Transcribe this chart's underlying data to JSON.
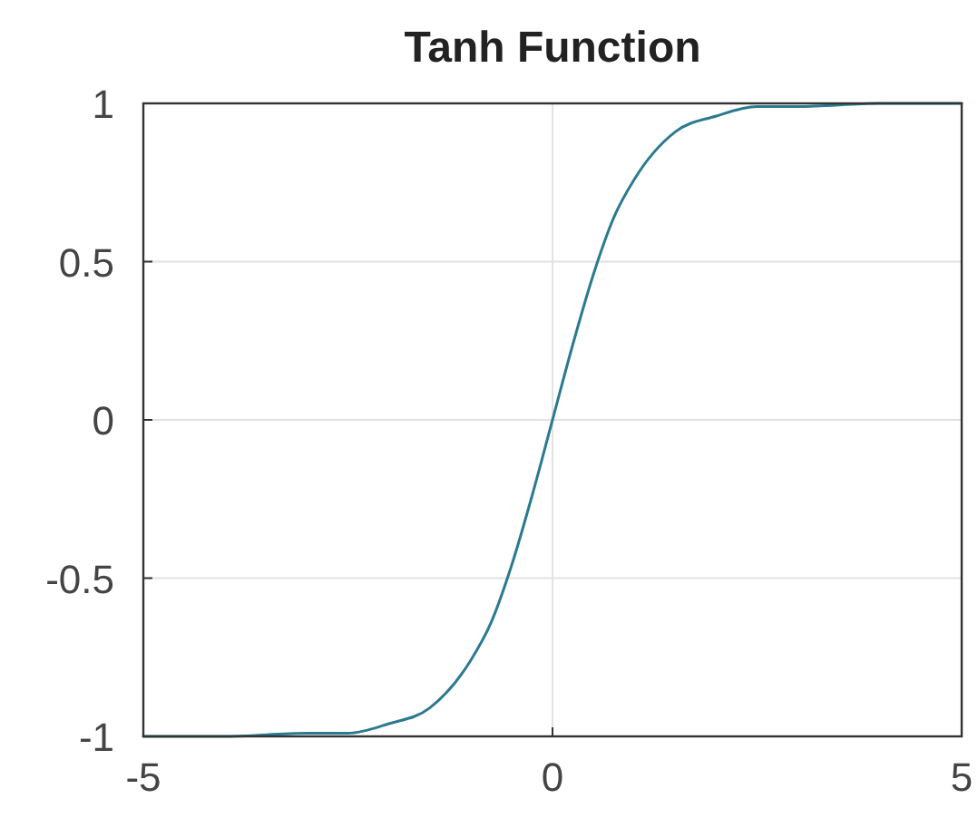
{
  "chart_data": {
    "type": "line",
    "title": "Tanh Function",
    "x": [
      -5,
      -4,
      -3,
      -2.5,
      -2,
      -1.5,
      -1,
      -0.75,
      -0.5,
      -0.25,
      0,
      0.25,
      0.5,
      0.75,
      1,
      1.5,
      2,
      2.5,
      3,
      4,
      5
    ],
    "series": [
      {
        "color": "#2b7a8f",
        "values": [
          -1,
          -1,
          -0.99,
          -0.99,
          -0.96,
          -0.91,
          -0.76,
          -0.64,
          -0.46,
          -0.24,
          0,
          0.24,
          0.46,
          0.64,
          0.76,
          0.91,
          0.96,
          0.99,
          0.99,
          1,
          1
        ]
      }
    ],
    "xlim": [
      -5,
      5
    ],
    "ylim": [
      -1,
      1
    ],
    "xticks": [
      -5,
      0,
      5
    ],
    "yticks": [
      -1,
      -0.5,
      0,
      0.5,
      1
    ],
    "grid": true
  }
}
